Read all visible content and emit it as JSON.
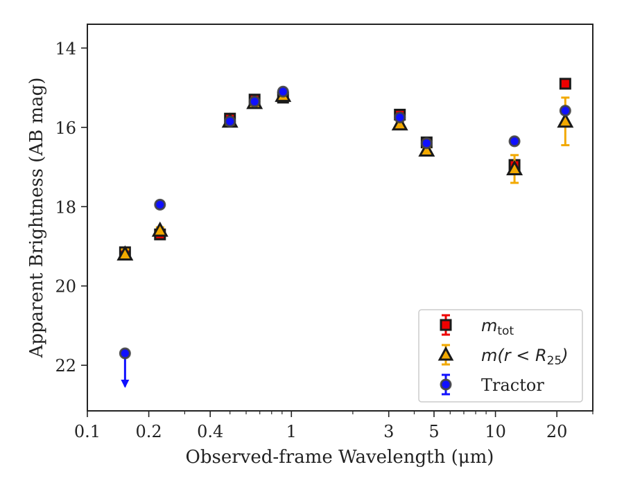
{
  "chart_data": {
    "type": "scatter",
    "xlabel": "Observed-frame Wavelength (μm)",
    "ylabel": "Apparent Brightness (AB mag)",
    "xscale": "log",
    "xlim": [
      0.1,
      30
    ],
    "ylim": [
      23.15,
      13.4
    ],
    "y_inverted": true,
    "grid": false,
    "legend_position": "lower-right",
    "x_tick_labels": [
      "0.1",
      "0.2",
      "0.4",
      "1",
      "3",
      "5",
      "10",
      "20"
    ],
    "x_ticks": [
      0.1,
      0.2,
      0.4,
      1,
      3,
      5,
      10,
      20
    ],
    "y_tick_labels": [
      "14",
      "16",
      "18",
      "20",
      "22"
    ],
    "y_ticks": [
      14,
      16,
      18,
      20,
      22
    ],
    "series": [
      {
        "name": "m_tot",
        "color": "#ee0000",
        "marker": "square",
        "points": [
          {
            "x": 0.153,
            "y": 19.15,
            "err": 0.1
          },
          {
            "x": 0.227,
            "y": 18.7,
            "err": 0.08
          },
          {
            "x": 0.5,
            "y": 15.78,
            "err": 0.08
          },
          {
            "x": 0.66,
            "y": 15.3,
            "err": 0.08
          },
          {
            "x": 0.91,
            "y": 15.25,
            "err": 0.08
          },
          {
            "x": 3.4,
            "y": 15.68,
            "err": 0.08
          },
          {
            "x": 4.6,
            "y": 16.38,
            "err": 0.06
          },
          {
            "x": 12.4,
            "y": 16.95,
            "err": 0.12
          },
          {
            "x": 22.0,
            "y": 14.9,
            "err": 0.05
          }
        ]
      },
      {
        "name": "m(r<R25)",
        "color": "#f2a900",
        "marker": "triangle",
        "points": [
          {
            "x": 0.153,
            "y": 19.2,
            "err": 0.12
          },
          {
            "x": 0.227,
            "y": 18.6,
            "err": 0.08
          },
          {
            "x": 0.5,
            "y": 15.85,
            "err": 0.06
          },
          {
            "x": 0.66,
            "y": 15.38,
            "err": 0.06
          },
          {
            "x": 0.91,
            "y": 15.2,
            "err": 0.06
          },
          {
            "x": 3.4,
            "y": 15.92,
            "err": 0.06
          },
          {
            "x": 4.6,
            "y": 16.58,
            "err": 0.06
          },
          {
            "x": 12.4,
            "y": 17.05,
            "err": 0.35
          },
          {
            "x": 22.0,
            "y": 15.85,
            "err": 0.6
          }
        ]
      },
      {
        "name": "Tractor",
        "color": "#1010ff",
        "marker": "circle",
        "points": [
          {
            "x": 0.153,
            "y": 21.7,
            "err": 0.0,
            "upper_limit": true
          },
          {
            "x": 0.227,
            "y": 17.95,
            "err": 0.07
          },
          {
            "x": 0.5,
            "y": 15.85,
            "err": 0.05
          },
          {
            "x": 0.66,
            "y": 15.35,
            "err": 0.05
          },
          {
            "x": 0.91,
            "y": 15.1,
            "err": 0.05
          },
          {
            "x": 3.4,
            "y": 15.75,
            "err": 0.05
          },
          {
            "x": 4.6,
            "y": 16.4,
            "err": 0.05
          },
          {
            "x": 12.4,
            "y": 16.35,
            "err": 0.06
          },
          {
            "x": 22.0,
            "y": 15.58,
            "err": 0.05
          }
        ]
      }
    ],
    "legend": {
      "entries": [
        {
          "prefix": "m",
          "sub": "tot",
          "suffix": ""
        },
        {
          "prefix": "m(r < R",
          "sub": "25",
          "suffix": ")"
        },
        {
          "prefix": "Tractor",
          "sub": "",
          "suffix": ""
        }
      ]
    }
  }
}
